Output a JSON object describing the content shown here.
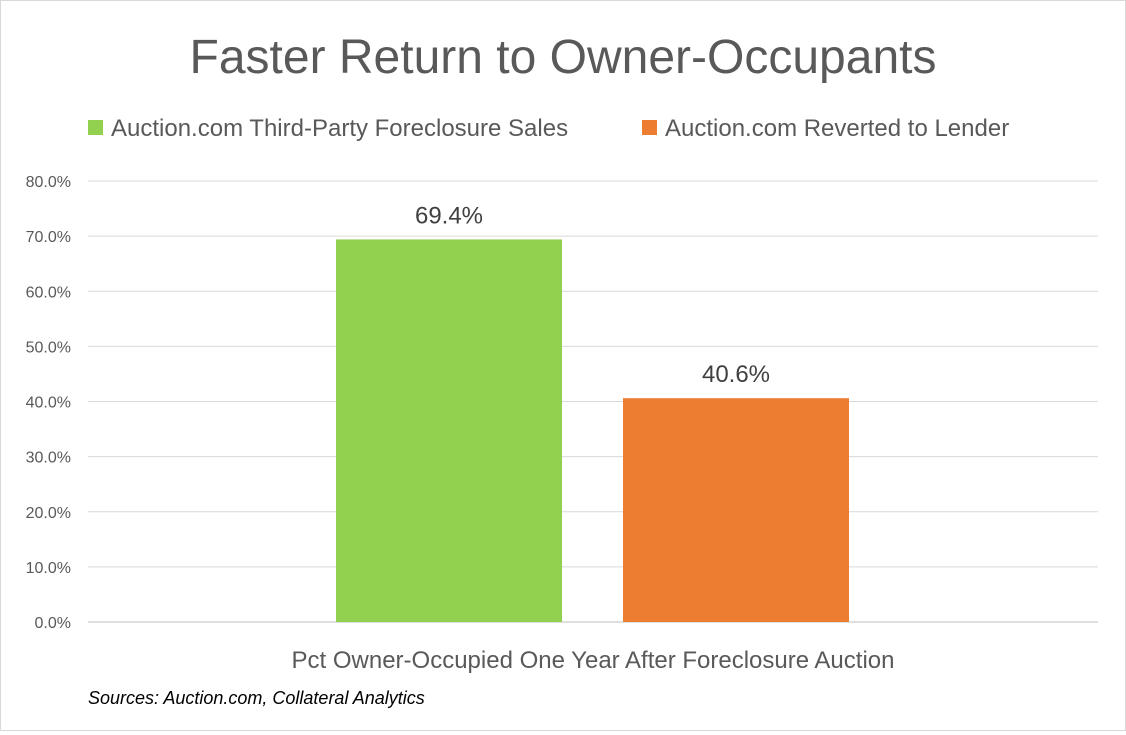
{
  "chart_data": {
    "type": "bar",
    "title": "Faster Return to Owner-Occupants",
    "categories": [
      "Pct Owner-Occupied One Year After Foreclosure Auction"
    ],
    "series": [
      {
        "name": "Auction.com Third-Party Foreclosure Sales",
        "values": [
          69.4
        ],
        "color": "#92d050",
        "label": "69.4%"
      },
      {
        "name": "Auction.com Reverted to Lender",
        "values": [
          40.6
        ],
        "color": "#ed7d31",
        "label": "40.6%"
      }
    ],
    "ylim": [
      0,
      80
    ],
    "yticks": [
      "0.0%",
      "10.0%",
      "20.0%",
      "30.0%",
      "40.0%",
      "50.0%",
      "60.0%",
      "70.0%",
      "80.0%"
    ],
    "grid": true,
    "legend_position": "top",
    "source_note": "Sources: Auction.com, Collateral Analytics"
  }
}
